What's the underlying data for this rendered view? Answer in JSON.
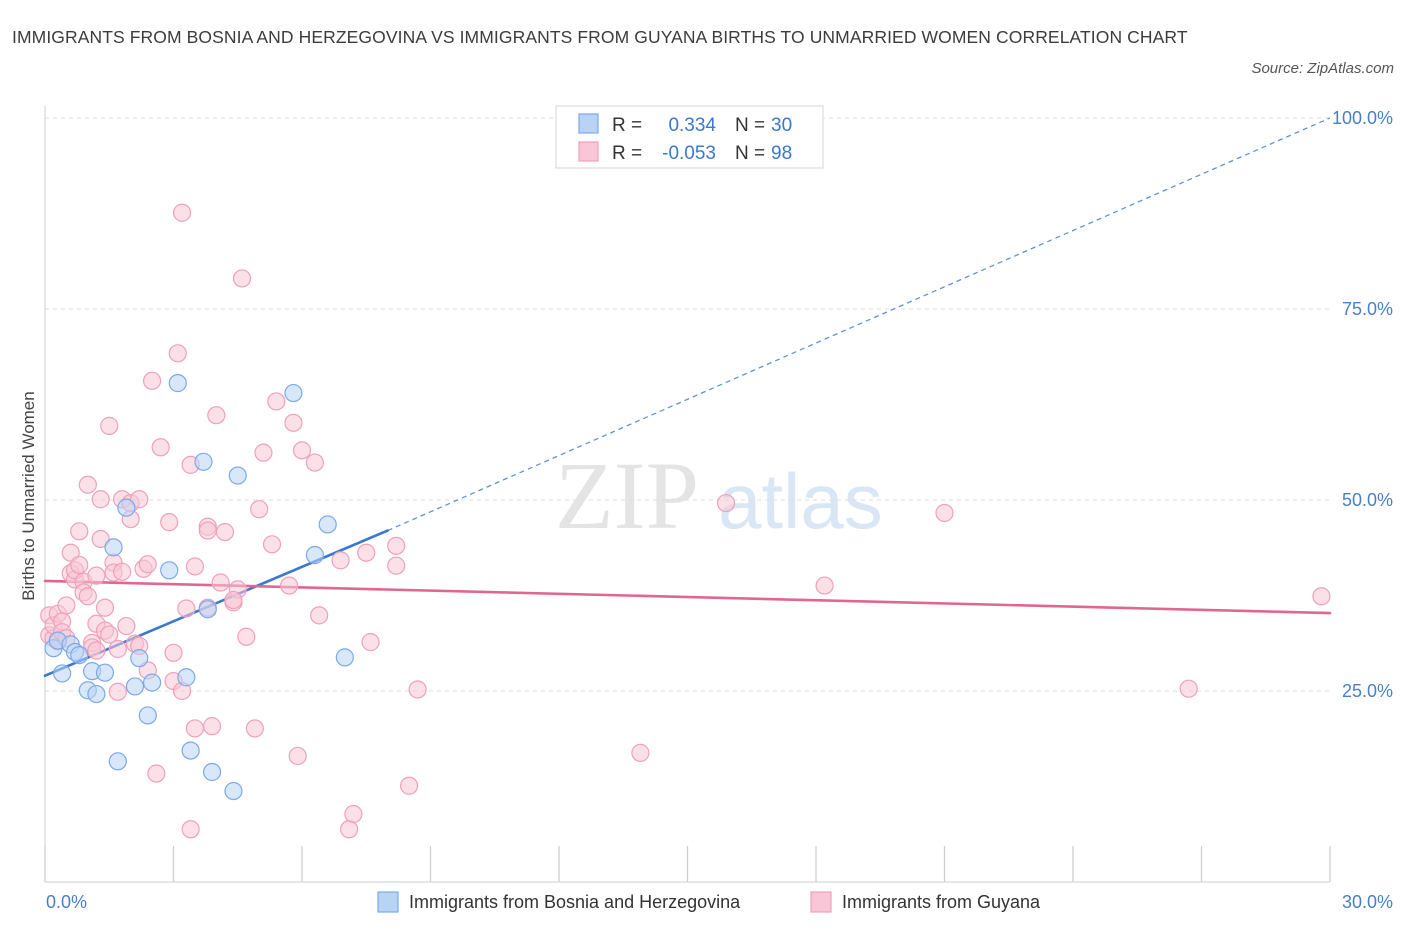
{
  "title": "IMMIGRANTS FROM BOSNIA AND HERZEGOVINA VS IMMIGRANTS FROM GUYANA BIRTHS TO UNMARRIED WOMEN CORRELATION CHART",
  "source": "Source: ZipAtlas.com",
  "watermark": {
    "zip": "ZIP",
    "atlas": "atlas"
  },
  "colors": {
    "bosnia": "#7aaae8",
    "bosnia_fill": "#b9d3f5",
    "bosnia_line": "#3a78d0",
    "guyana": "#f0a0bb",
    "guyana_fill": "#f8c6d6",
    "guyana_line": "#e06890",
    "axis_text": "#4a7fc8",
    "grid": "#dedede"
  },
  "stats": {
    "bosnia": {
      "r_label": "R =",
      "r_value": "0.334",
      "n_label": "N =",
      "n_value": "30"
    },
    "guyana": {
      "r_label": "R =",
      "r_value": "-0.053",
      "n_label": "N =",
      "n_value": "98"
    }
  },
  "chart_data": {
    "type": "scatter",
    "ylabel": "Births to Unmarried Women",
    "xlim": [
      0,
      30
    ],
    "ylim": [
      0,
      100
    ],
    "x_tick_labels": {
      "min": "0.0%",
      "max": "30.0%"
    },
    "y_ticks": [
      {
        "value": 25,
        "label": "25.0%"
      },
      {
        "value": 50,
        "label": "50.0%"
      },
      {
        "value": 75,
        "label": "75.0%"
      },
      {
        "value": 100,
        "label": "100.0%"
      }
    ],
    "grid": true,
    "legend_position": "bottom",
    "series": [
      {
        "name": "Immigrants from Bosnia and Herzegovina",
        "key": "bosnia",
        "trend": {
          "x": [
            0,
            8.0
          ],
          "y": [
            27,
            46
          ],
          "extended_to": [
            30,
            100
          ]
        },
        "points": [
          [
            0.2,
            30.6
          ],
          [
            0.3,
            31.6
          ],
          [
            0.4,
            27.3
          ],
          [
            0.6,
            31.1
          ],
          [
            0.7,
            30.1
          ],
          [
            0.8,
            29.7
          ],
          [
            1.0,
            25.1
          ],
          [
            1.1,
            27.6
          ],
          [
            1.2,
            24.6
          ],
          [
            1.4,
            27.4
          ],
          [
            1.6,
            43.8
          ],
          [
            1.7,
            15.8
          ],
          [
            1.9,
            49.0
          ],
          [
            2.1,
            25.6
          ],
          [
            2.2,
            29.3
          ],
          [
            2.4,
            21.8
          ],
          [
            2.5,
            26.1
          ],
          [
            2.9,
            40.8
          ],
          [
            3.1,
            65.3
          ],
          [
            3.3,
            26.8
          ],
          [
            3.4,
            17.2
          ],
          [
            3.7,
            55.0
          ],
          [
            3.8,
            35.7
          ],
          [
            3.9,
            14.4
          ],
          [
            4.4,
            11.9
          ],
          [
            4.5,
            53.2
          ],
          [
            5.8,
            64.0
          ],
          [
            6.3,
            42.8
          ],
          [
            6.6,
            46.8
          ],
          [
            7.0,
            29.4
          ]
        ]
      },
      {
        "name": "Immigrants from Guyana",
        "key": "guyana",
        "trend": {
          "x": [
            0,
            30
          ],
          "y": [
            39.4,
            35.2
          ]
        },
        "points": [
          [
            0.1,
            32.3
          ],
          [
            0.1,
            34.9
          ],
          [
            0.2,
            31.9
          ],
          [
            0.2,
            33.6
          ],
          [
            0.3,
            35.1
          ],
          [
            0.3,
            31.5
          ],
          [
            0.4,
            34.1
          ],
          [
            0.4,
            32.7
          ],
          [
            0.5,
            31.9
          ],
          [
            0.5,
            36.2
          ],
          [
            0.6,
            43.1
          ],
          [
            0.6,
            40.4
          ],
          [
            0.7,
            39.6
          ],
          [
            0.7,
            40.8
          ],
          [
            0.8,
            41.5
          ],
          [
            0.8,
            45.9
          ],
          [
            0.9,
            39.3
          ],
          [
            0.9,
            37.9
          ],
          [
            1.0,
            37.4
          ],
          [
            1.0,
            52.0
          ],
          [
            1.1,
            31.3
          ],
          [
            1.1,
            30.7
          ],
          [
            1.2,
            40.1
          ],
          [
            1.2,
            33.8
          ],
          [
            1.3,
            44.9
          ],
          [
            1.3,
            50.1
          ],
          [
            1.4,
            35.9
          ],
          [
            1.4,
            32.9
          ],
          [
            1.5,
            59.7
          ],
          [
            1.5,
            32.4
          ],
          [
            1.6,
            41.8
          ],
          [
            1.6,
            40.5
          ],
          [
            1.7,
            30.5
          ],
          [
            1.7,
            24.9
          ],
          [
            1.8,
            50.1
          ],
          [
            1.8,
            40.6
          ],
          [
            1.9,
            33.5
          ],
          [
            2.0,
            49.6
          ],
          [
            2.0,
            47.5
          ],
          [
            2.1,
            31.2
          ],
          [
            2.2,
            50.1
          ],
          [
            2.3,
            41.0
          ],
          [
            2.4,
            27.7
          ],
          [
            2.4,
            41.6
          ],
          [
            2.5,
            65.6
          ],
          [
            2.6,
            14.2
          ],
          [
            2.7,
            56.9
          ],
          [
            2.9,
            47.1
          ],
          [
            3.0,
            30.0
          ],
          [
            3.0,
            26.3
          ],
          [
            3.1,
            69.2
          ],
          [
            3.2,
            87.6
          ],
          [
            3.2,
            25.0
          ],
          [
            3.3,
            35.8
          ],
          [
            3.4,
            54.6
          ],
          [
            3.4,
            6.9
          ],
          [
            3.5,
            41.3
          ],
          [
            3.5,
            20.1
          ],
          [
            3.8,
            46.5
          ],
          [
            3.8,
            46.0
          ],
          [
            3.9,
            20.4
          ],
          [
            4.0,
            61.1
          ],
          [
            4.1,
            39.2
          ],
          [
            4.2,
            45.8
          ],
          [
            4.4,
            36.6
          ],
          [
            4.5,
            38.3
          ],
          [
            4.6,
            79.0
          ],
          [
            4.7,
            32.1
          ],
          [
            4.9,
            20.1
          ],
          [
            5.0,
            48.8
          ],
          [
            5.1,
            56.2
          ],
          [
            5.3,
            44.2
          ],
          [
            5.4,
            62.9
          ],
          [
            5.7,
            38.8
          ],
          [
            5.8,
            60.1
          ],
          [
            5.9,
            16.5
          ],
          [
            6.0,
            56.5
          ],
          [
            6.3,
            54.9
          ],
          [
            6.4,
            34.9
          ],
          [
            6.9,
            42.1
          ],
          [
            7.1,
            6.9
          ],
          [
            7.2,
            8.9
          ],
          [
            7.5,
            43.1
          ],
          [
            7.6,
            31.4
          ],
          [
            8.2,
            44.0
          ],
          [
            8.2,
            41.4
          ],
          [
            8.5,
            12.6
          ],
          [
            8.7,
            25.2
          ],
          [
            13.9,
            16.9
          ],
          [
            15.9,
            49.6
          ],
          [
            18.2,
            38.8
          ],
          [
            21.0,
            48.3
          ],
          [
            26.7,
            25.3
          ],
          [
            29.8,
            37.4
          ],
          [
            1.2,
            30.3
          ],
          [
            2.2,
            30.9
          ],
          [
            3.8,
            35.9
          ],
          [
            4.4,
            36.9
          ]
        ]
      }
    ]
  },
  "legend": {
    "bosnia": "Immigrants from Bosnia and Herzegovina",
    "guyana": "Immigrants from Guyana"
  }
}
